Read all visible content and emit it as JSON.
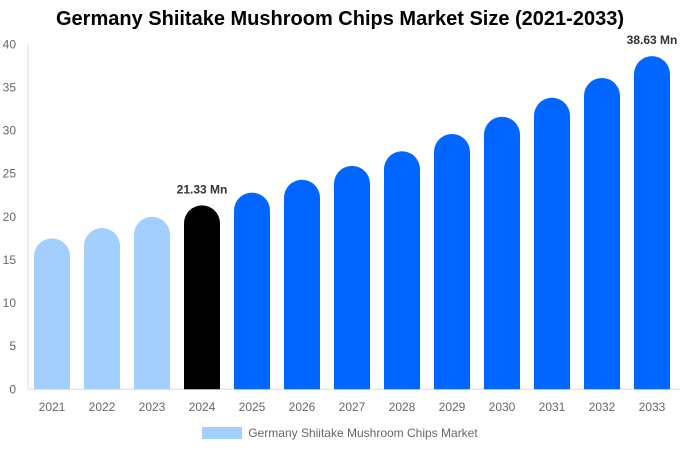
{
  "chart_data": {
    "type": "bar",
    "title": "Germany Shiitake Mushroom Chips Market Size (2021-2033)",
    "categories": [
      "2021",
      "2022",
      "2023",
      "2024",
      "2025",
      "2026",
      "2027",
      "2028",
      "2029",
      "2030",
      "2031",
      "2032",
      "2033"
    ],
    "series": [
      {
        "name": "Germany Shiitake Mushroom Chips Market",
        "values": [
          17.5,
          18.7,
          20.0,
          21.33,
          22.8,
          24.3,
          25.9,
          27.6,
          29.6,
          31.6,
          33.8,
          36.1,
          38.63
        ]
      }
    ],
    "ylim": [
      0,
      40
    ],
    "yticks": [
      0,
      5,
      10,
      15,
      20,
      25,
      30,
      35,
      40
    ],
    "data_labels": {
      "3": "21.33 Mn",
      "12": "38.63 Mn"
    },
    "colors": {
      "historical": "#a3cfff",
      "current": "#000000",
      "forecast": "#0066ff"
    },
    "grid": false,
    "legend": "bottom"
  }
}
